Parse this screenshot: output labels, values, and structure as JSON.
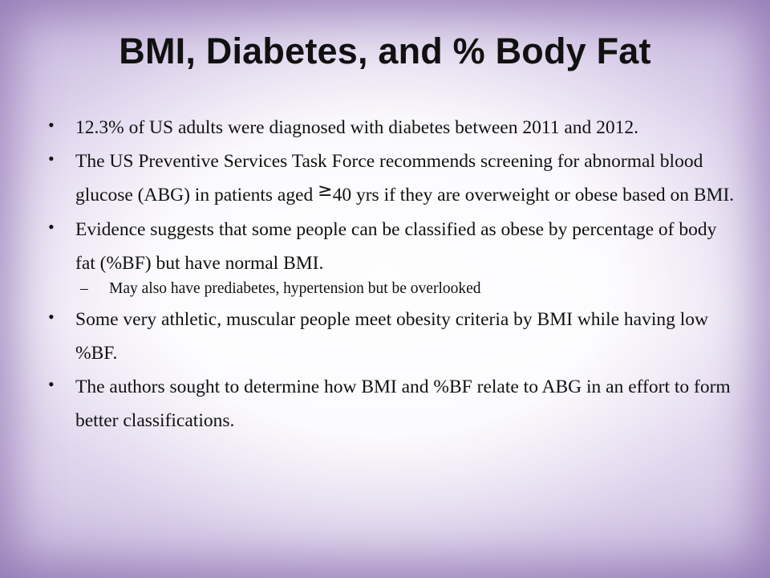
{
  "slide": {
    "title": "BMI, Diabetes, and % Body Fat",
    "bullets": [
      {
        "text": "12.3% of US adults were diagnosed with diabetes between 2011 and 2012."
      },
      {
        "text_before": "The US Preventive Services Task Force recommends screening for abnormal blood glucose (ABG) in patients aged ",
        "symbol": "≥",
        "text_after": "40 yrs if they are overweight or obese based on BMI."
      },
      {
        "text": "Evidence suggests that some people can be classified as obese by percentage of body fat (%BF) but have normal BMI.",
        "sub": "May also have prediabetes, hypertension but be overlooked"
      },
      {
        "text": "Some very athletic, muscular people meet obesity criteria by BMI while having low %BF."
      },
      {
        "text": "The authors sought to determine how BMI and %BF relate to ABG in an effort to form better classifications."
      }
    ],
    "bullet_glyph": "•",
    "sub_glyph": "–"
  },
  "colors": {
    "text": "#111111",
    "border_purple": "#b7a6d2"
  }
}
